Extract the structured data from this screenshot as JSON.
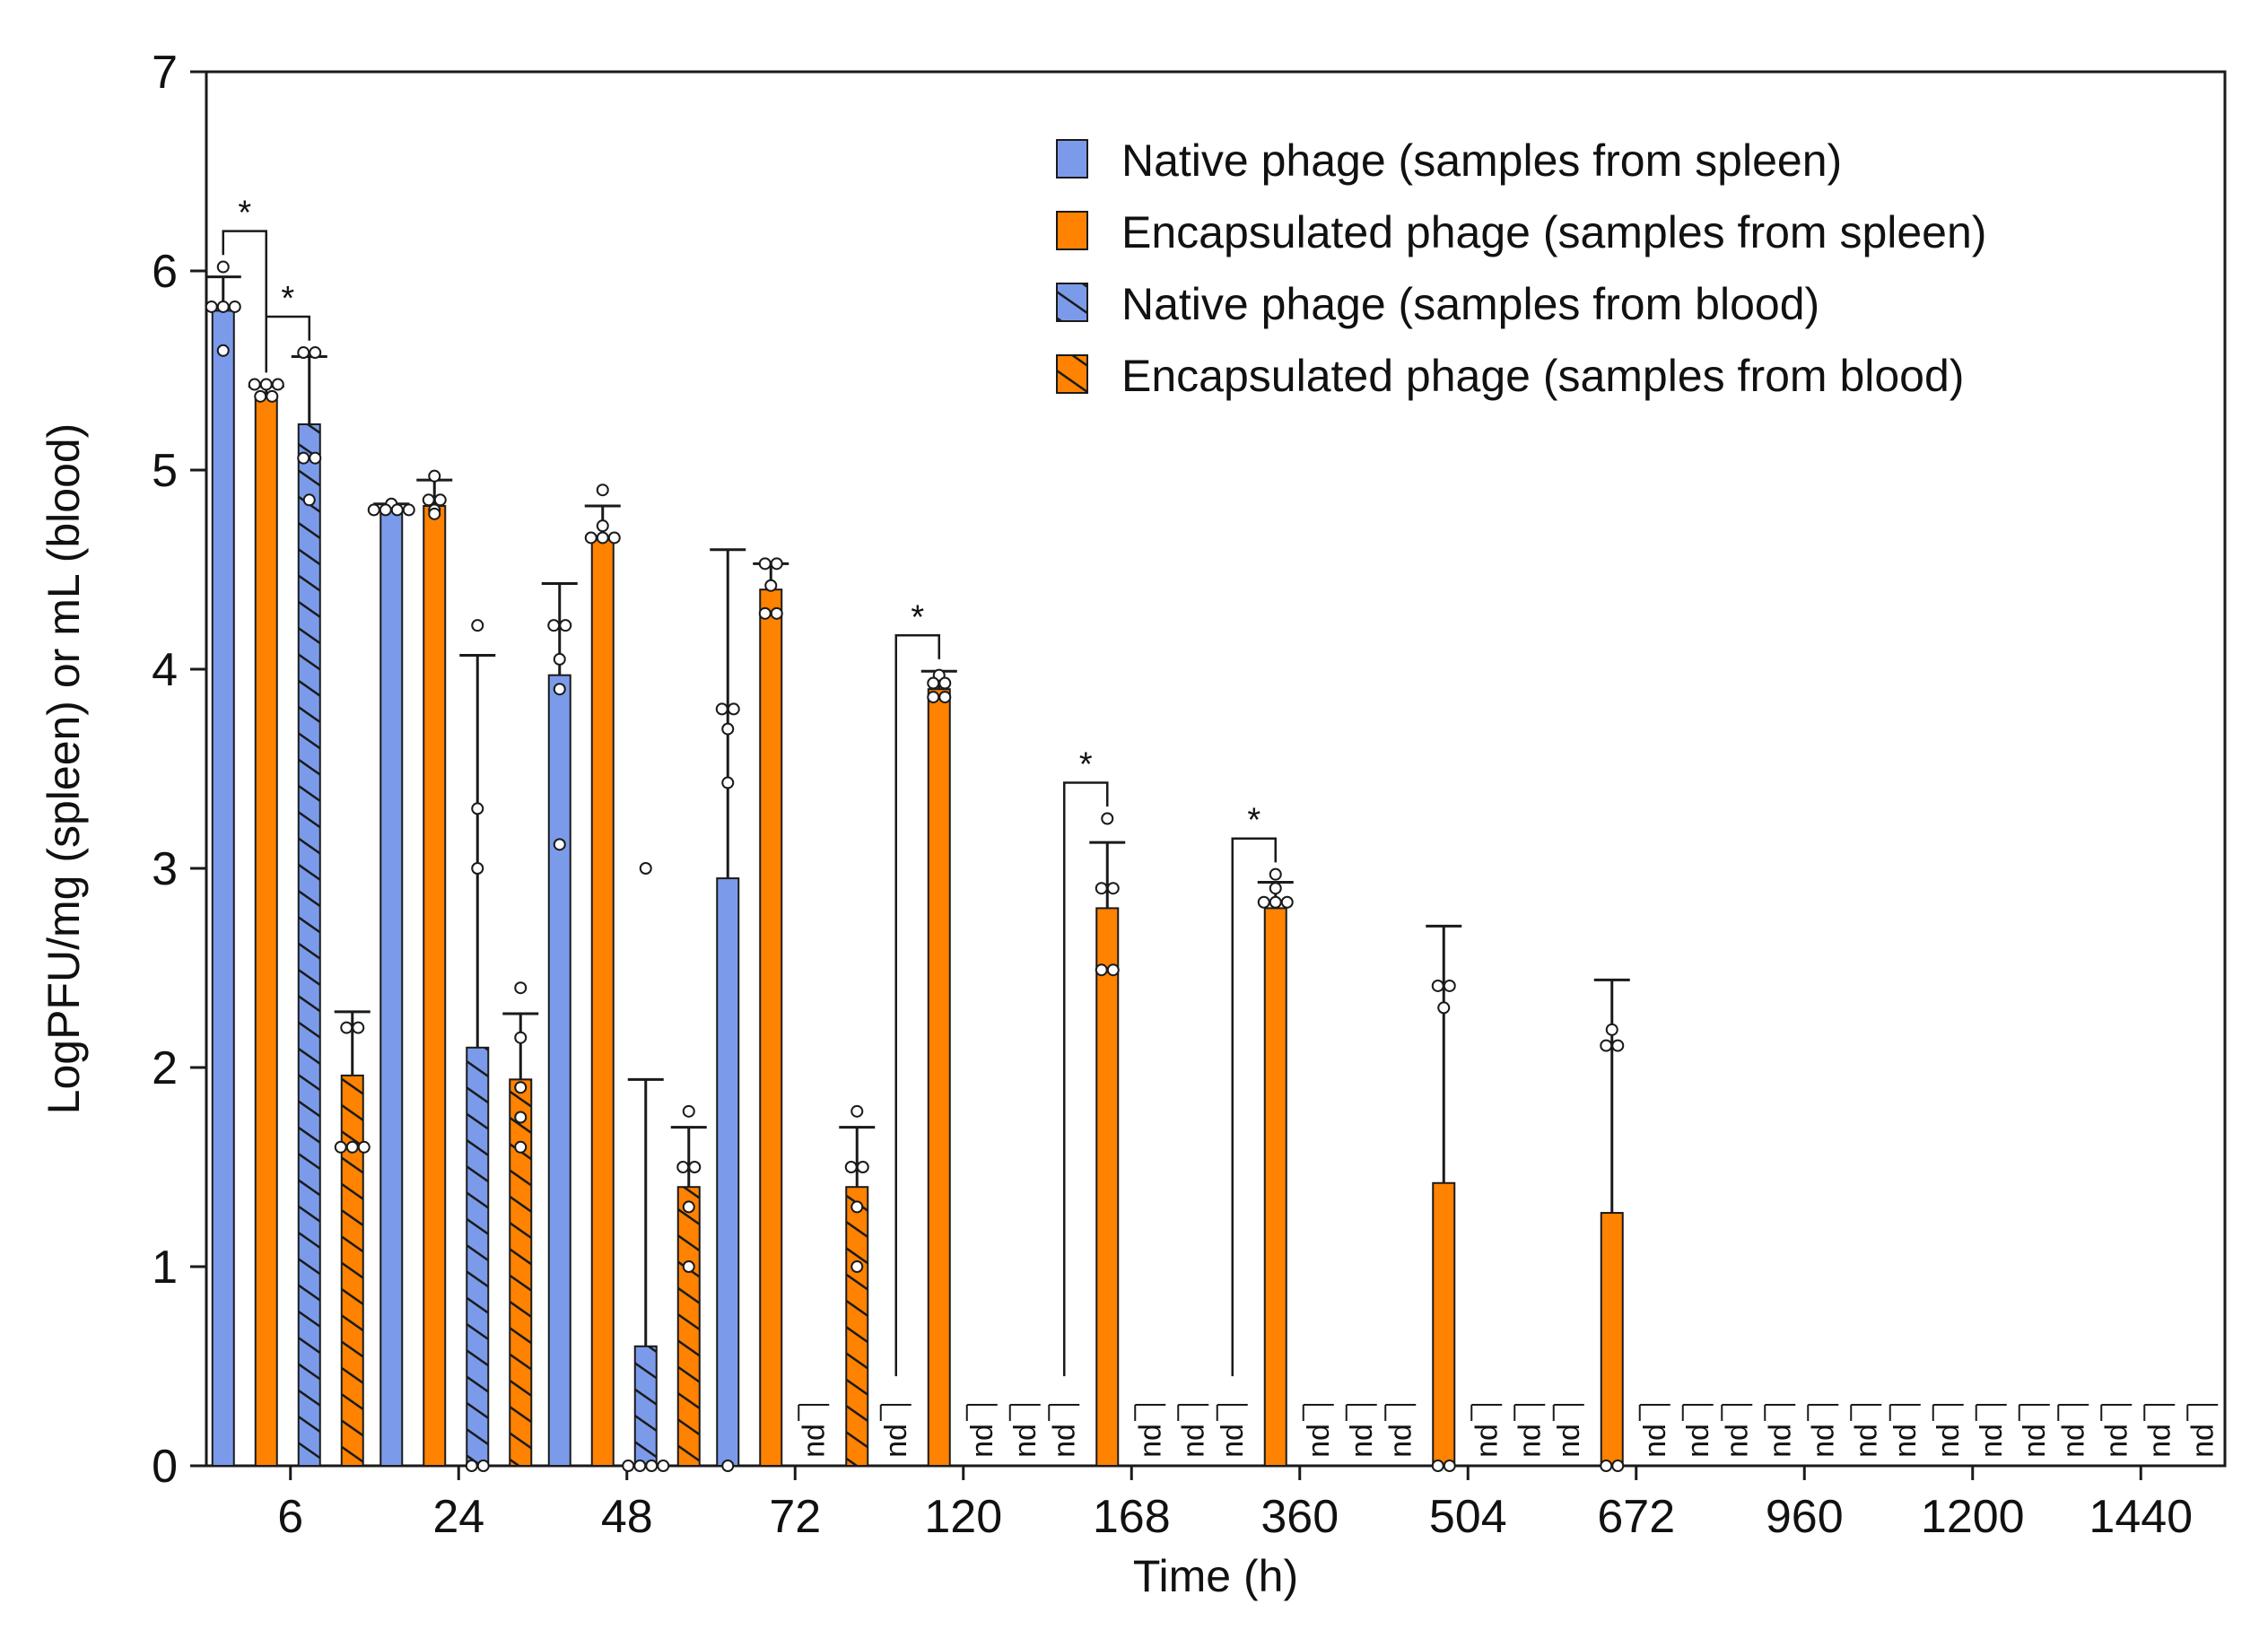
{
  "chart_data": {
    "type": "bar",
    "title": "",
    "xlabel": "Time (h)",
    "ylabel": "LogPFU/mg (spleen) or mL (blood)",
    "ylim": [
      0,
      7
    ],
    "yticks": [
      "0",
      "1",
      "2",
      "3",
      "4",
      "5",
      "6",
      "7"
    ],
    "categories": [
      "6",
      "24",
      "48",
      "72",
      "120",
      "168",
      "360",
      "504",
      "672",
      "960",
      "1200",
      "1440"
    ],
    "nd_text": "nd",
    "significance_text": "*",
    "legend": {
      "position": "top-right"
    },
    "series": [
      {
        "name": "Native phage (samples from spleen)",
        "color": "#7b9bea",
        "hatch": false,
        "values": [
          5.8,
          4.8,
          3.97,
          2.95,
          null,
          null,
          null,
          null,
          null,
          null,
          null,
          null
        ],
        "errors": [
          0.17,
          0.03,
          0.46,
          1.65,
          null,
          null,
          null,
          null,
          null,
          null,
          null,
          null
        ],
        "points": [
          [
            6.02,
            5.82,
            5.82,
            5.82,
            5.6
          ],
          [
            4.83,
            4.8,
            4.8,
            4.8,
            4.8
          ],
          [
            4.22,
            4.22,
            4.05,
            3.9,
            3.12
          ],
          [
            3.8,
            3.8,
            3.7,
            3.43,
            0
          ],
          [],
          [],
          [],
          [],
          [],
          [],
          [],
          []
        ]
      },
      {
        "name": "Encapsulated phage (samples from spleen)",
        "color": "#ff8200",
        "hatch": false,
        "values": [
          5.37,
          4.82,
          4.65,
          4.4,
          3.9,
          2.8,
          2.8,
          1.42,
          1.27,
          null,
          null,
          null
        ],
        "errors": [
          0.05,
          0.13,
          0.17,
          0.13,
          0.09,
          0.33,
          0.13,
          1.29,
          1.17,
          null,
          null,
          null
        ],
        "points": [
          [
            5.43,
            5.43,
            5.43,
            5.37,
            5.37
          ],
          [
            4.97,
            4.85,
            4.85,
            4.8,
            4.78
          ],
          [
            4.9,
            4.72,
            4.66,
            4.66,
            4.66
          ],
          [
            4.53,
            4.53,
            4.42,
            4.28,
            4.28
          ],
          [
            3.97,
            3.93,
            3.93,
            3.86,
            3.86
          ],
          [
            3.25,
            2.9,
            2.9,
            2.49,
            2.49
          ],
          [
            2.97,
            2.9,
            2.83,
            2.83,
            2.83
          ],
          [
            2.41,
            2.41,
            2.3,
            0,
            0
          ],
          [
            2.19,
            2.11,
            2.11,
            0,
            0
          ],
          [],
          [],
          []
        ],
        "nd": [
          false,
          false,
          false,
          false,
          false,
          false,
          false,
          false,
          false,
          true,
          true,
          true
        ]
      },
      {
        "name": "Native phage (samples from blood)",
        "color": "#7b9bea",
        "hatch": true,
        "values": [
          5.23,
          2.1,
          0.6,
          null,
          null,
          null,
          null,
          null,
          null,
          null,
          null,
          null
        ],
        "errors": [
          0.34,
          1.97,
          1.34,
          null,
          null,
          null,
          null,
          null,
          null,
          null,
          null,
          null
        ],
        "points": [
          [
            5.59,
            5.59,
            5.06,
            5.06,
            4.85
          ],
          [
            4.22,
            3.3,
            3.0,
            0,
            0
          ],
          [
            3.0,
            0,
            0,
            0,
            0
          ],
          [],
          [],
          [],
          [],
          [],
          [],
          [],
          [],
          []
        ],
        "nd": [
          false,
          false,
          false,
          true,
          true,
          true,
          true,
          true,
          true,
          true,
          true,
          true
        ]
      },
      {
        "name": "Encapsulated phage (samples from blood)",
        "color": "#ff8200",
        "hatch": true,
        "values": [
          1.96,
          1.94,
          1.4,
          1.4,
          null,
          null,
          null,
          null,
          null,
          null,
          null,
          null
        ],
        "errors": [
          0.32,
          0.33,
          0.3,
          0.3,
          null,
          null,
          null,
          null,
          null,
          null,
          null,
          null
        ],
        "points": [
          [
            2.2,
            2.2,
            1.6,
            1.6,
            1.6
          ],
          [
            2.4,
            2.15,
            1.9,
            1.75,
            1.6
          ],
          [
            1.78,
            1.5,
            1.5,
            1.3,
            1.0
          ],
          [
            1.78,
            1.5,
            1.5,
            1.3,
            1.0
          ],
          [],
          [],
          [],
          [],
          [],
          [],
          [],
          []
        ],
        "nd": [
          false,
          false,
          false,
          false,
          true,
          true,
          true,
          true,
          true,
          true,
          true,
          true
        ]
      }
    ],
    "native_spleen_nd": [
      false,
      false,
      false,
      false,
      true,
      true,
      true,
      true,
      true,
      true,
      true,
      true
    ],
    "significance": [
      {
        "category": "6",
        "from_series": 0,
        "to_series": 1,
        "label": "*"
      },
      {
        "category": "6",
        "from_series": 1,
        "to_series": 2,
        "label": "*"
      },
      {
        "category": "120",
        "from_series": 0,
        "to_series": 1,
        "label": "*"
      },
      {
        "category": "168",
        "from_series": 0,
        "to_series": 1,
        "label": "*"
      },
      {
        "category": "360",
        "from_series": 0,
        "to_series": 1,
        "label": "*"
      }
    ]
  }
}
